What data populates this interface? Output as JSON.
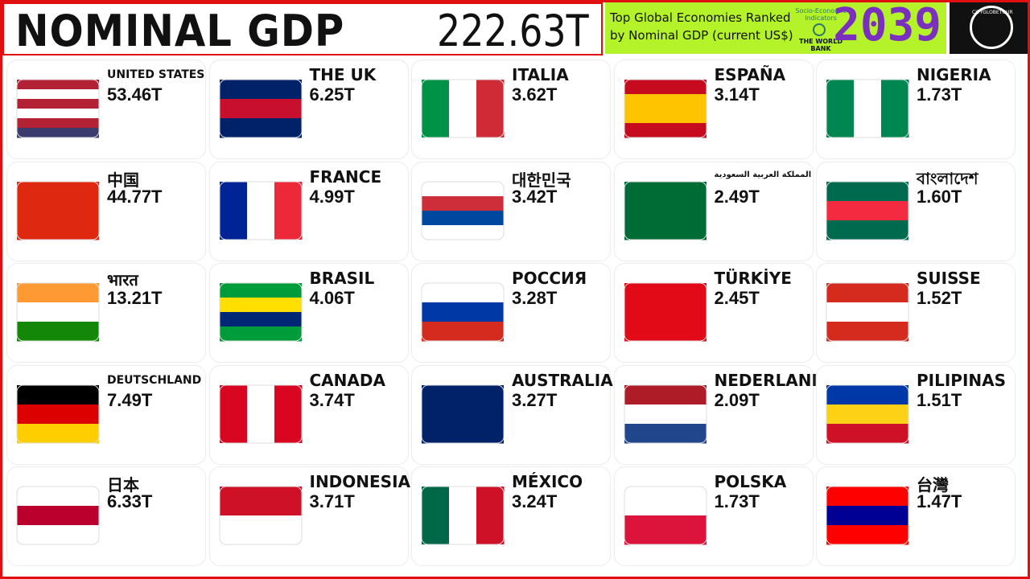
{
  "header": {
    "title": "NOMINAL GDP",
    "total": "222.63T",
    "subtitle_line1": "Top Global Economies Ranked",
    "subtitle_line2": "by Nominal GDP (current US$)",
    "source_line1": "Socio-Economic",
    "source_line2": "Indicators",
    "source_org": "THE WORLD BANK",
    "year": "2039",
    "logo": "CITYGLOBETOUR"
  },
  "countries": [
    {
      "name": "UNITED STATES",
      "value": "53.46T"
    },
    {
      "name": "THE UK",
      "value": "6.25T"
    },
    {
      "name": "ITALIA",
      "value": "3.62T"
    },
    {
      "name": "ESPAÑA",
      "value": "3.14T"
    },
    {
      "name": "NIGERIA",
      "value": "1.73T"
    },
    {
      "name": "中国",
      "value": "44.77T"
    },
    {
      "name": "FRANCE",
      "value": "4.99T"
    },
    {
      "name": "대한민국",
      "value": "3.42T"
    },
    {
      "name": "المملكة العربية السعودية",
      "value": "2.49T"
    },
    {
      "name": "বাংলাদেশ",
      "value": "1.60T"
    },
    {
      "name": "भारत",
      "value": "13.21T"
    },
    {
      "name": "BRASIL",
      "value": "4.06T"
    },
    {
      "name": "РОССИЯ",
      "value": "3.28T"
    },
    {
      "name": "TÜRKİYE",
      "value": "2.45T"
    },
    {
      "name": "SUISSE",
      "value": "1.52T"
    },
    {
      "name": "DEUTSCHLAND",
      "value": "7.49T"
    },
    {
      "name": "CANADA",
      "value": "3.74T"
    },
    {
      "name": "AUSTRALIA",
      "value": "3.27T"
    },
    {
      "name": "NEDERLAND",
      "value": "2.09T"
    },
    {
      "name": "PILIPINAS",
      "value": "1.51T"
    },
    {
      "name": "日本",
      "value": "6.33T"
    },
    {
      "name": "INDONESIA",
      "value": "3.71T"
    },
    {
      "name": "MÉXICO",
      "value": "3.24T"
    },
    {
      "name": "POLSKA",
      "value": "1.73T"
    },
    {
      "name": "台灣",
      "value": "1.47T"
    }
  ]
}
